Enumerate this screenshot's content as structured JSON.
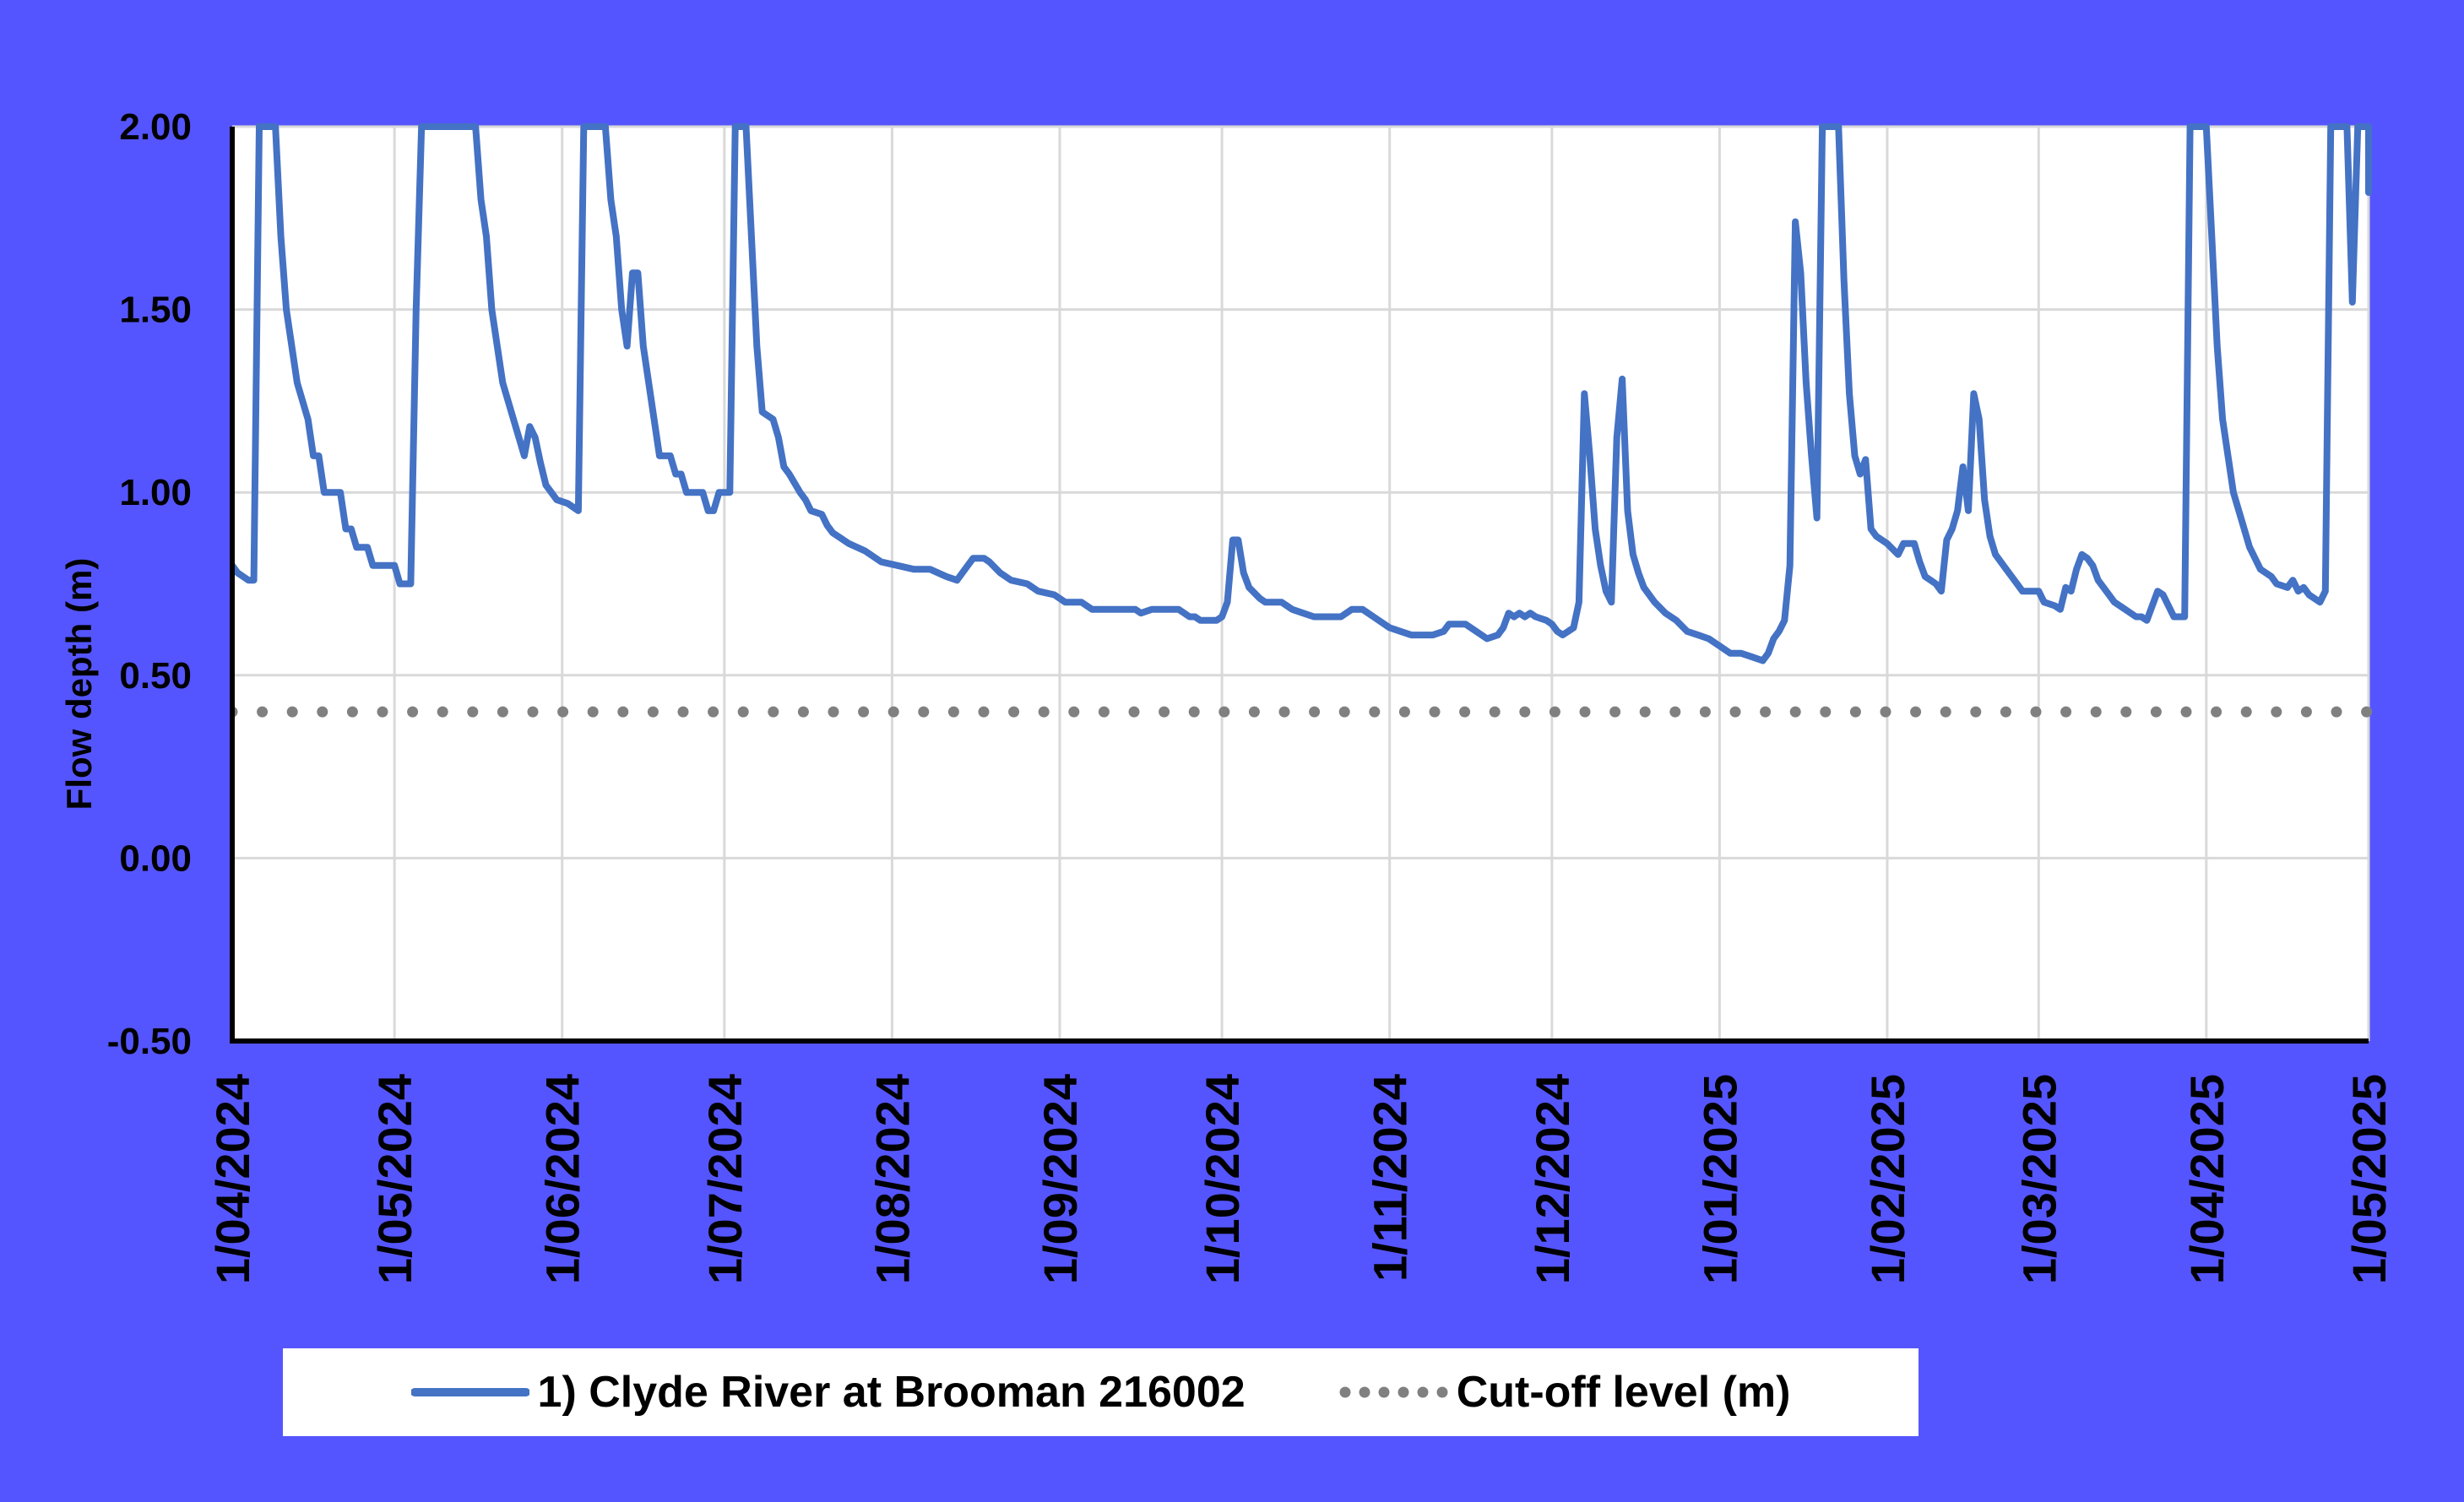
{
  "chart_data": {
    "type": "line",
    "title": "",
    "ylabel": "Flow depth (m)",
    "xlabel": "",
    "ylim": [
      -0.5,
      2.0
    ],
    "yticks": [
      "2.00",
      "1.50",
      "1.00",
      "0.50",
      "0.00",
      "-0.50"
    ],
    "ytick_values": [
      2.0,
      1.5,
      1.0,
      0.5,
      0.0,
      -0.5
    ],
    "xlim": [
      "2024-04-01",
      "2025-05-01"
    ],
    "xticks": [
      "1/04/2024",
      "1/05/2024",
      "1/06/2024",
      "1/07/2024",
      "1/08/2024",
      "1/09/2024",
      "1/10/2024",
      "1/11/2024",
      "1/12/2024",
      "1/01/2025",
      "1/02/2025",
      "1/03/2025",
      "1/04/2025",
      "1/05/2025"
    ],
    "xtick_dates": [
      "2024-04-01",
      "2024-05-01",
      "2024-06-01",
      "2024-07-01",
      "2024-08-01",
      "2024-09-01",
      "2024-10-01",
      "2024-11-01",
      "2024-12-01",
      "2025-01-01",
      "2025-02-01",
      "2025-03-01",
      "2025-04-01",
      "2025-05-01"
    ],
    "grid": true,
    "legend_position": "bottom",
    "series": [
      {
        "name": "1) Clyde River at Brooman 216002",
        "color": "#4472c4",
        "style": "solid",
        "points": [
          [
            "2024-04-01",
            0.8
          ],
          [
            "2024-04-02",
            0.78
          ],
          [
            "2024-04-03",
            0.77
          ],
          [
            "2024-04-04",
            0.76
          ],
          [
            "2024-04-05",
            0.76
          ],
          [
            "2024-04-06",
            2.0
          ],
          [
            "2024-04-09",
            2.0
          ],
          [
            "2024-04-10",
            1.7
          ],
          [
            "2024-04-11",
            1.5
          ],
          [
            "2024-04-13",
            1.3
          ],
          [
            "2024-04-15",
            1.2
          ],
          [
            "2024-04-16",
            1.1
          ],
          [
            "2024-04-17",
            1.1
          ],
          [
            "2024-04-18",
            1.0
          ],
          [
            "2024-04-21",
            1.0
          ],
          [
            "2024-04-22",
            0.9
          ],
          [
            "2024-04-23",
            0.9
          ],
          [
            "2024-04-24",
            0.85
          ],
          [
            "2024-04-26",
            0.85
          ],
          [
            "2024-04-27",
            0.8
          ],
          [
            "2024-05-01",
            0.8
          ],
          [
            "2024-05-02",
            0.75
          ],
          [
            "2024-05-04",
            0.75
          ],
          [
            "2024-05-05",
            1.5
          ],
          [
            "2024-05-06",
            2.0
          ],
          [
            "2024-05-16",
            2.0
          ],
          [
            "2024-05-17",
            1.8
          ],
          [
            "2024-05-18",
            1.7
          ],
          [
            "2024-05-19",
            1.5
          ],
          [
            "2024-05-21",
            1.3
          ],
          [
            "2024-05-23",
            1.2
          ],
          [
            "2024-05-25",
            1.1
          ],
          [
            "2024-05-26",
            1.18
          ],
          [
            "2024-05-27",
            1.15
          ],
          [
            "2024-05-28",
            1.08
          ],
          [
            "2024-05-29",
            1.02
          ],
          [
            "2024-05-31",
            0.98
          ],
          [
            "2024-06-02",
            0.97
          ],
          [
            "2024-06-03",
            0.96
          ],
          [
            "2024-06-04",
            0.95
          ],
          [
            "2024-06-05",
            2.0
          ],
          [
            "2024-06-09",
            2.0
          ],
          [
            "2024-06-10",
            1.8
          ],
          [
            "2024-06-11",
            1.7
          ],
          [
            "2024-06-12",
            1.5
          ],
          [
            "2024-06-13",
            1.4
          ],
          [
            "2024-06-14",
            1.6
          ],
          [
            "2024-06-15",
            1.6
          ],
          [
            "2024-06-16",
            1.4
          ],
          [
            "2024-06-17",
            1.3
          ],
          [
            "2024-06-18",
            1.2
          ],
          [
            "2024-06-19",
            1.1
          ],
          [
            "2024-06-21",
            1.1
          ],
          [
            "2024-06-22",
            1.05
          ],
          [
            "2024-06-23",
            1.05
          ],
          [
            "2024-06-24",
            1.0
          ],
          [
            "2024-06-27",
            1.0
          ],
          [
            "2024-06-28",
            0.95
          ],
          [
            "2024-06-29",
            0.95
          ],
          [
            "2024-06-30",
            1.0
          ],
          [
            "2024-07-02",
            1.0
          ],
          [
            "2024-07-03",
            2.0
          ],
          [
            "2024-07-05",
            2.0
          ],
          [
            "2024-07-06",
            1.7
          ],
          [
            "2024-07-07",
            1.4
          ],
          [
            "2024-07-08",
            1.22
          ],
          [
            "2024-07-10",
            1.2
          ],
          [
            "2024-07-11",
            1.15
          ],
          [
            "2024-07-12",
            1.07
          ],
          [
            "2024-07-13",
            1.05
          ],
          [
            "2024-07-15",
            1.0
          ],
          [
            "2024-07-16",
            0.98
          ],
          [
            "2024-07-17",
            0.95
          ],
          [
            "2024-07-19",
            0.94
          ],
          [
            "2024-07-20",
            0.91
          ],
          [
            "2024-07-21",
            0.89
          ],
          [
            "2024-07-24",
            0.86
          ],
          [
            "2024-07-27",
            0.84
          ],
          [
            "2024-07-30",
            0.81
          ],
          [
            "2024-08-02",
            0.8
          ],
          [
            "2024-08-05",
            0.79
          ],
          [
            "2024-08-08",
            0.79
          ],
          [
            "2024-08-11",
            0.77
          ],
          [
            "2024-08-13",
            0.76
          ],
          [
            "2024-08-15",
            0.8
          ],
          [
            "2024-08-16",
            0.82
          ],
          [
            "2024-08-18",
            0.82
          ],
          [
            "2024-08-19",
            0.81
          ],
          [
            "2024-08-21",
            0.78
          ],
          [
            "2024-08-23",
            0.76
          ],
          [
            "2024-08-26",
            0.75
          ],
          [
            "2024-08-28",
            0.73
          ],
          [
            "2024-08-31",
            0.72
          ],
          [
            "2024-09-02",
            0.7
          ],
          [
            "2024-09-05",
            0.7
          ],
          [
            "2024-09-07",
            0.68
          ],
          [
            "2024-09-12",
            0.68
          ],
          [
            "2024-09-15",
            0.68
          ],
          [
            "2024-09-16",
            0.67
          ],
          [
            "2024-09-18",
            0.68
          ],
          [
            "2024-09-22",
            0.68
          ],
          [
            "2024-09-23",
            0.68
          ],
          [
            "2024-09-25",
            0.66
          ],
          [
            "2024-09-26",
            0.66
          ],
          [
            "2024-09-27",
            0.65
          ],
          [
            "2024-09-30",
            0.65
          ],
          [
            "2024-10-01",
            0.66
          ],
          [
            "2024-10-02",
            0.7
          ],
          [
            "2024-10-03",
            0.87
          ],
          [
            "2024-10-04",
            0.87
          ],
          [
            "2024-10-05",
            0.78
          ],
          [
            "2024-10-06",
            0.74
          ],
          [
            "2024-10-08",
            0.71
          ],
          [
            "2024-10-09",
            0.7
          ],
          [
            "2024-10-12",
            0.7
          ],
          [
            "2024-10-14",
            0.68
          ],
          [
            "2024-10-16",
            0.67
          ],
          [
            "2024-10-18",
            0.66
          ],
          [
            "2024-10-23",
            0.66
          ],
          [
            "2024-10-25",
            0.68
          ],
          [
            "2024-10-27",
            0.68
          ],
          [
            "2024-10-29",
            0.66
          ],
          [
            "2024-10-31",
            0.64
          ],
          [
            "2024-11-01",
            0.63
          ],
          [
            "2024-11-03",
            0.62
          ],
          [
            "2024-11-05",
            0.61
          ],
          [
            "2024-11-09",
            0.61
          ],
          [
            "2024-11-11",
            0.62
          ],
          [
            "2024-11-12",
            0.64
          ],
          [
            "2024-11-15",
            0.64
          ],
          [
            "2024-11-17",
            0.62
          ],
          [
            "2024-11-19",
            0.6
          ],
          [
            "2024-11-21",
            0.61
          ],
          [
            "2024-11-22",
            0.63
          ],
          [
            "2024-11-23",
            0.67
          ],
          [
            "2024-11-24",
            0.66
          ],
          [
            "2024-11-25",
            0.67
          ],
          [
            "2024-11-26",
            0.66
          ],
          [
            "2024-11-27",
            0.67
          ],
          [
            "2024-11-28",
            0.66
          ],
          [
            "2024-11-30",
            0.65
          ],
          [
            "2024-12-01",
            0.64
          ],
          [
            "2024-12-02",
            0.62
          ],
          [
            "2024-12-03",
            0.61
          ],
          [
            "2024-12-04",
            0.62
          ],
          [
            "2024-12-05",
            0.63
          ],
          [
            "2024-12-06",
            0.7
          ],
          [
            "2024-12-07",
            1.27
          ],
          [
            "2024-12-08",
            1.1
          ],
          [
            "2024-12-09",
            0.9
          ],
          [
            "2024-12-10",
            0.8
          ],
          [
            "2024-12-11",
            0.73
          ],
          [
            "2024-12-12",
            0.7
          ],
          [
            "2024-12-13",
            1.15
          ],
          [
            "2024-12-14",
            1.31
          ],
          [
            "2024-12-15",
            0.95
          ],
          [
            "2024-12-16",
            0.83
          ],
          [
            "2024-12-17",
            0.78
          ],
          [
            "2024-12-18",
            0.74
          ],
          [
            "2024-12-20",
            0.7
          ],
          [
            "2024-12-22",
            0.67
          ],
          [
            "2024-12-24",
            0.65
          ],
          [
            "2024-12-26",
            0.62
          ],
          [
            "2024-12-28",
            0.61
          ],
          [
            "2024-12-30",
            0.6
          ],
          [
            "2025-01-01",
            0.58
          ],
          [
            "2025-01-03",
            0.56
          ],
          [
            "2025-01-05",
            0.56
          ],
          [
            "2025-01-07",
            0.55
          ],
          [
            "2025-01-09",
            0.54
          ],
          [
            "2025-01-10",
            0.56
          ],
          [
            "2025-01-11",
            0.6
          ],
          [
            "2025-01-12",
            0.62
          ],
          [
            "2025-01-13",
            0.65
          ],
          [
            "2025-01-14",
            0.8
          ],
          [
            "2025-01-15",
            1.74
          ],
          [
            "2025-01-16",
            1.6
          ],
          [
            "2025-01-17",
            1.3
          ],
          [
            "2025-01-18",
            1.1
          ],
          [
            "2025-01-19",
            0.93
          ],
          [
            "2025-01-20",
            2.0
          ],
          [
            "2025-01-23",
            2.0
          ],
          [
            "2025-01-24",
            1.58
          ],
          [
            "2025-01-25",
            1.27
          ],
          [
            "2025-01-26",
            1.1
          ],
          [
            "2025-01-27",
            1.05
          ],
          [
            "2025-01-28",
            1.09
          ],
          [
            "2025-01-29",
            0.9
          ],
          [
            "2025-01-30",
            0.88
          ],
          [
            "2025-02-01",
            0.86
          ],
          [
            "2025-02-03",
            0.83
          ],
          [
            "2025-02-04",
            0.86
          ],
          [
            "2025-02-06",
            0.86
          ],
          [
            "2025-02-07",
            0.81
          ],
          [
            "2025-02-08",
            0.77
          ],
          [
            "2025-02-10",
            0.75
          ],
          [
            "2025-02-11",
            0.73
          ],
          [
            "2025-02-12",
            0.87
          ],
          [
            "2025-02-13",
            0.9
          ],
          [
            "2025-02-14",
            0.95
          ],
          [
            "2025-02-15",
            1.07
          ],
          [
            "2025-02-16",
            0.95
          ],
          [
            "2025-02-17",
            1.27
          ],
          [
            "2025-02-18",
            1.2
          ],
          [
            "2025-02-19",
            0.98
          ],
          [
            "2025-02-20",
            0.88
          ],
          [
            "2025-02-21",
            0.83
          ],
          [
            "2025-02-23",
            0.79
          ],
          [
            "2025-02-25",
            0.75
          ],
          [
            "2025-02-26",
            0.73
          ],
          [
            "2025-03-01",
            0.73
          ],
          [
            "2025-03-02",
            0.7
          ],
          [
            "2025-03-04",
            0.69
          ],
          [
            "2025-03-05",
            0.68
          ],
          [
            "2025-03-06",
            0.74
          ],
          [
            "2025-03-07",
            0.73
          ],
          [
            "2025-03-08",
            0.79
          ],
          [
            "2025-03-09",
            0.83
          ],
          [
            "2025-03-10",
            0.82
          ],
          [
            "2025-03-11",
            0.8
          ],
          [
            "2025-03-12",
            0.76
          ],
          [
            "2025-03-14",
            0.72
          ],
          [
            "2025-03-15",
            0.7
          ],
          [
            "2025-03-17",
            0.68
          ],
          [
            "2025-03-19",
            0.66
          ],
          [
            "2025-03-20",
            0.66
          ],
          [
            "2025-03-21",
            0.65
          ],
          [
            "2025-03-23",
            0.73
          ],
          [
            "2025-03-24",
            0.72
          ],
          [
            "2025-03-26",
            0.66
          ],
          [
            "2025-03-28",
            0.66
          ],
          [
            "2025-03-29",
            2.0
          ],
          [
            "2025-04-01",
            2.0
          ],
          [
            "2025-04-02",
            1.7
          ],
          [
            "2025-04-03",
            1.4
          ],
          [
            "2025-04-04",
            1.2
          ],
          [
            "2025-04-05",
            1.1
          ],
          [
            "2025-04-06",
            1.0
          ],
          [
            "2025-04-07",
            0.95
          ],
          [
            "2025-04-08",
            0.9
          ],
          [
            "2025-04-09",
            0.85
          ],
          [
            "2025-04-10",
            0.82
          ],
          [
            "2025-04-11",
            0.79
          ],
          [
            "2025-04-13",
            0.77
          ],
          [
            "2025-04-14",
            0.75
          ],
          [
            "2025-04-16",
            0.74
          ],
          [
            "2025-04-17",
            0.76
          ],
          [
            "2025-04-18",
            0.73
          ],
          [
            "2025-04-19",
            0.74
          ],
          [
            "2025-04-20",
            0.72
          ],
          [
            "2025-04-22",
            0.7
          ],
          [
            "2025-04-23",
            0.73
          ],
          [
            "2025-04-24",
            2.0
          ],
          [
            "2025-04-27",
            2.0
          ],
          [
            "2025-04-28",
            1.52
          ],
          [
            "2025-04-29",
            2.0
          ],
          [
            "2025-05-01",
            2.0
          ],
          [
            "2025-05-01",
            1.82
          ]
        ]
      },
      {
        "name": "Cut-off level (m)",
        "color": "#808080",
        "style": "dotted",
        "points": [
          [
            "2024-04-01",
            0.4
          ],
          [
            "2025-05-01",
            0.4
          ]
        ]
      }
    ]
  }
}
